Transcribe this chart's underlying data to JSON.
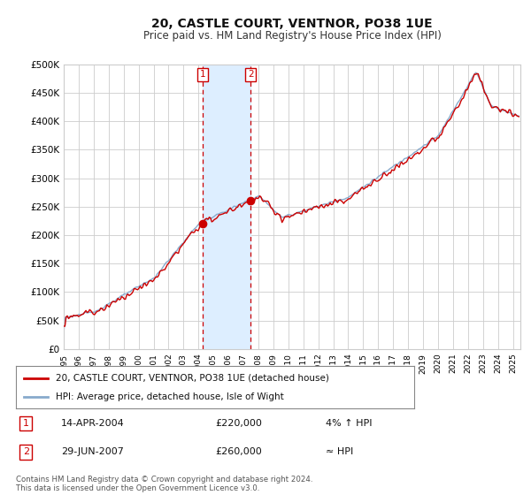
{
  "title": "20, CASTLE COURT, VENTNOR, PO38 1UE",
  "subtitle": "Price paid vs. HM Land Registry's House Price Index (HPI)",
  "ylabel_ticks": [
    "£0",
    "£50K",
    "£100K",
    "£150K",
    "£200K",
    "£250K",
    "£300K",
    "£350K",
    "£400K",
    "£450K",
    "£500K"
  ],
  "ytick_values": [
    0,
    50000,
    100000,
    150000,
    200000,
    250000,
    300000,
    350000,
    400000,
    450000,
    500000
  ],
  "ylim": [
    0,
    500000
  ],
  "xlim_start": 1995.0,
  "xlim_end": 2025.5,
  "purchase1_x": 2004.29,
  "purchase1_y": 220000,
  "purchase2_x": 2007.49,
  "purchase2_y": 260000,
  "marker_color": "#cc0000",
  "hpi_line_color": "#88aacc",
  "price_line_color": "#cc0000",
  "shading_color": "#ddeeff",
  "grid_color": "#cccccc",
  "background_color": "#ffffff",
  "legend_label1": "20, CASTLE COURT, VENTNOR, PO38 1UE (detached house)",
  "legend_label2": "HPI: Average price, detached house, Isle of Wight",
  "table_row1": [
    "1",
    "14-APR-2004",
    "£220,000",
    "4% ↑ HPI"
  ],
  "table_row2": [
    "2",
    "29-JUN-2007",
    "£260,000",
    "≈ HPI"
  ],
  "footer": "Contains HM Land Registry data © Crown copyright and database right 2024.\nThis data is licensed under the Open Government Licence v3.0.",
  "xtick_years": [
    1995,
    1996,
    1997,
    1998,
    1999,
    2000,
    2001,
    2002,
    2003,
    2004,
    2005,
    2006,
    2007,
    2008,
    2009,
    2010,
    2011,
    2012,
    2013,
    2014,
    2015,
    2016,
    2017,
    2018,
    2019,
    2020,
    2021,
    2022,
    2023,
    2024,
    2025
  ]
}
